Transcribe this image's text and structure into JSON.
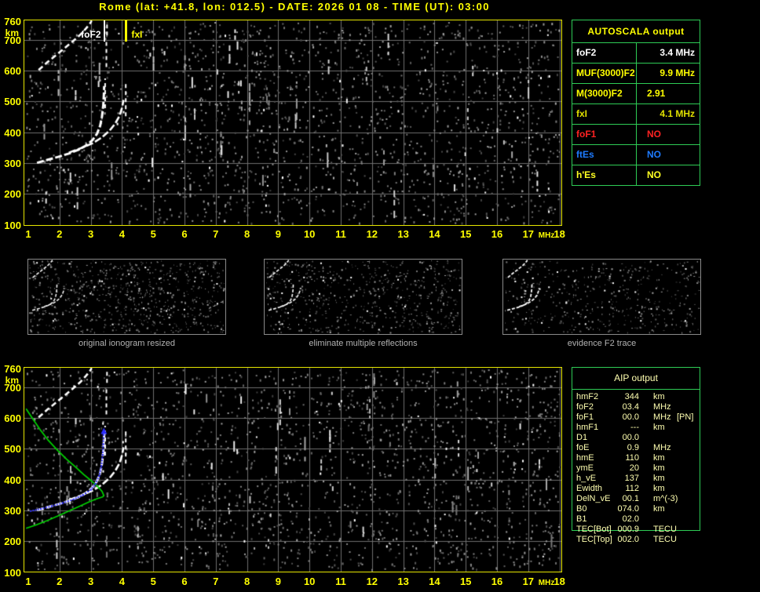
{
  "title": "Rome (lat: +41.8, lon: 012.5) - DATE: 2026 01 08 - TIME (UT): 03:00",
  "colors": {
    "accent_yellow": "#ffff00",
    "table_border_green": "#2ecc55",
    "aip_text": "#ffffb0",
    "grid_gray": "#6e6e6e",
    "trace_white": "#ffffff",
    "profile_green": "#00d400",
    "restored_blue": "#2d2dff",
    "plot_border": "#e6e600"
  },
  "autoscala": {
    "header": "AUTOSCALA output",
    "rows": [
      {
        "label": "foF2",
        "value": "3.4 MHz",
        "color": "#ffffff"
      },
      {
        "label": "MUF(3000)F2",
        "value": "9.9 MHz",
        "color": "#ffff00"
      },
      {
        "label": "M(3000)F2",
        "value": "2.91",
        "color": "#ffff00"
      },
      {
        "label": "fxI",
        "value": "4.1 MHz",
        "color": "#e0e000"
      },
      {
        "label": "foF1",
        "value": "NO",
        "color": "#ff2222"
      },
      {
        "label": "ftEs",
        "value": "NO",
        "color": "#1e7bff"
      },
      {
        "label": "h'Es",
        "value": "NO",
        "color": "#ffff22"
      }
    ]
  },
  "aip": {
    "header": "AIP output",
    "rows": [
      {
        "name": "hmF2",
        "value": "344",
        "unit": "km",
        "extra": ""
      },
      {
        "name": "foF2",
        "value": "03.4",
        "unit": "MHz",
        "extra": ""
      },
      {
        "name": "foF1",
        "value": "00.0",
        "unit": "MHz",
        "extra": "[PN]"
      },
      {
        "name": "hmF1",
        "value": "---",
        "unit": "km",
        "extra": ""
      },
      {
        "name": "D1",
        "value": "00.0",
        "unit": "",
        "extra": ""
      },
      {
        "name": "foE",
        "value": "0.9",
        "unit": "MHz",
        "extra": ""
      },
      {
        "name": "hmE",
        "value": "110",
        "unit": "km",
        "extra": ""
      },
      {
        "name": "ymE",
        "value": "20",
        "unit": "km",
        "extra": ""
      },
      {
        "name": "h_vE",
        "value": "137",
        "unit": "km",
        "extra": ""
      },
      {
        "name": "Ewidth",
        "value": "112",
        "unit": "km",
        "extra": ""
      },
      {
        "name": "DelN_vE",
        "value": "00.1",
        "unit": "m^(-3)",
        "extra": ""
      },
      {
        "name": "B0",
        "value": "074.0",
        "unit": "km",
        "extra": ""
      },
      {
        "name": "B1",
        "value": "02.0",
        "unit": "",
        "extra": ""
      },
      {
        "name": "TEC[Bot]",
        "value": "000.9",
        "unit": "TECU",
        "extra": ""
      },
      {
        "name": "TEC[Top]",
        "value": "002.0",
        "unit": "TECU",
        "extra": ""
      }
    ]
  },
  "panels": [
    {
      "label": "original ionogram resized"
    },
    {
      "label": "eliminate multiple reflections"
    },
    {
      "label": "evidence F2 trace"
    }
  ],
  "chart_data": {
    "type": "scatter",
    "title": "Ionogram, Rome, 2026-01-08 03:00 UT",
    "xlabel": "MHz",
    "ylabel": "km",
    "xlim": [
      1,
      18
    ],
    "ylim": [
      90,
      760
    ],
    "grid": true,
    "x_ticks": [
      1,
      2,
      3,
      4,
      5,
      6,
      7,
      8,
      9,
      10,
      11,
      12,
      13,
      14,
      15,
      16,
      17,
      18
    ],
    "x_unit": "MHz",
    "y_ticks": [
      760,
      700,
      600,
      500,
      400,
      300,
      200,
      100
    ],
    "y_unit": "km",
    "markers": [
      {
        "label": "foF2",
        "f": 3.4,
        "color": "#ffffff",
        "side": "left"
      },
      {
        "label": "fxI",
        "f": 4.1,
        "color": "#ffff00",
        "side": "right"
      }
    ],
    "white_traces": [
      {
        "name": "F2-ordinary",
        "pts": [
          [
            1.28,
            301
          ],
          [
            1.6,
            310
          ],
          [
            1.95,
            320
          ],
          [
            2.3,
            331
          ],
          [
            2.6,
            343
          ],
          [
            2.85,
            357
          ],
          [
            3.05,
            374
          ],
          [
            3.2,
            395
          ],
          [
            3.3,
            421
          ],
          [
            3.36,
            452
          ],
          [
            3.4,
            487
          ],
          [
            3.42,
            522
          ],
          [
            3.43,
            550
          ]
        ]
      },
      {
        "name": "F2-extraordinary",
        "pts": [
          [
            2.3,
            334
          ],
          [
            2.7,
            349
          ],
          [
            3.05,
            364
          ],
          [
            3.35,
            383
          ],
          [
            3.6,
            405
          ],
          [
            3.78,
            428
          ],
          [
            3.92,
            453
          ],
          [
            4.0,
            479
          ],
          [
            4.05,
            505
          ]
        ]
      },
      {
        "name": "second-hop",
        "pts": [
          [
            1.33,
            602
          ],
          [
            1.62,
            628
          ],
          [
            1.92,
            653
          ],
          [
            2.22,
            678
          ],
          [
            2.48,
            700
          ],
          [
            2.68,
            718
          ],
          [
            2.84,
            736
          ],
          [
            2.97,
            752
          ],
          [
            3.03,
            762
          ]
        ]
      }
    ],
    "white_dashes": [
      {
        "f": 3.46,
        "h1": 478,
        "h2": 575
      },
      {
        "f": 3.5,
        "h1": 612,
        "h2": 700
      },
      {
        "f": 3.52,
        "h1": 714,
        "h2": 756
      },
      {
        "f": 4.12,
        "h1": 452,
        "h2": 562
      }
    ],
    "blue_trace": {
      "name": "restored F2 trace",
      "pts": [
        [
          1.08,
          298
        ],
        [
          1.4,
          305
        ],
        [
          1.75,
          314
        ],
        [
          2.1,
          324
        ],
        [
          2.45,
          336
        ],
        [
          2.75,
          350
        ],
        [
          3.0,
          367
        ],
        [
          3.15,
          386
        ],
        [
          3.27,
          412
        ],
        [
          3.34,
          444
        ],
        [
          3.38,
          480
        ],
        [
          3.4,
          515
        ],
        [
          3.41,
          545
        ],
        [
          3.42,
          556
        ]
      ]
    },
    "green_profile": {
      "name": "electron density profile",
      "pts": [
        [
          0.93,
          242
        ],
        [
          1.25,
          253
        ],
        [
          1.6,
          267
        ],
        [
          1.95,
          282
        ],
        [
          2.3,
          298
        ],
        [
          2.65,
          314
        ],
        [
          2.95,
          328
        ],
        [
          3.2,
          338
        ],
        [
          3.38,
          344
        ],
        [
          3.42,
          348
        ],
        [
          3.36,
          362
        ],
        [
          3.22,
          378
        ],
        [
          3.02,
          396
        ],
        [
          2.78,
          416
        ],
        [
          2.52,
          440
        ],
        [
          2.22,
          467
        ],
        [
          1.92,
          497
        ],
        [
          1.62,
          530
        ],
        [
          1.38,
          562
        ],
        [
          1.18,
          592
        ],
        [
          1.02,
          616
        ],
        [
          0.93,
          630
        ]
      ]
    }
  }
}
